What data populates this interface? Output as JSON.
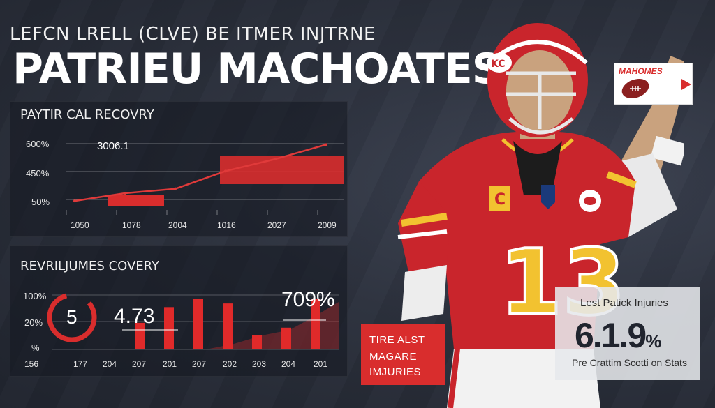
{
  "header": {
    "subtitle": "LEFCN LRELL (CLVE) BE ITMER INJTRNE",
    "title": "PATRIEU MACHOATES"
  },
  "panel_top": {
    "title": "PAYTIR CAL RECOVRY",
    "callout": "3006.1"
  },
  "panel_bottom": {
    "title": "REVRILJUMES COVERY",
    "circle_value": "5",
    "callout_value": "4.73",
    "callout_pct": "709%"
  },
  "red_box": {
    "line1": "TIRE ALST",
    "line2": "MAGARE",
    "line3": "IMJURIES"
  },
  "stat_box": {
    "label": "Lest Patick Injuries",
    "value": "6.1.9",
    "pct": "%",
    "note": "Pre Crattim Scotti on Stats"
  },
  "logo": {
    "text": "MAHOMES"
  },
  "player": {
    "jersey_number": "13",
    "patch": "C"
  },
  "colors": {
    "accent": "#d92d2d",
    "background": "#2a2f3c",
    "jersey": "#c9252c",
    "jersey_trim": "#f2c230"
  },
  "chart_data": [
    {
      "type": "line",
      "title": "PAYTIR CAL RECOVRY",
      "x": [
        "1050",
        "1078",
        "2004",
        "1016",
        "2027",
        "2009"
      ],
      "y_ticks": [
        "50%",
        "450%",
        "600%"
      ],
      "series": [
        {
          "values": [
            50,
            120,
            160,
            320,
            430,
            560
          ]
        }
      ],
      "annotations": [
        "3006.1"
      ],
      "grid": true
    },
    {
      "type": "bar",
      "title": "REVRILJUMES COVERY",
      "categories": [
        "156",
        "177",
        "204",
        "207",
        "201",
        "207",
        "202",
        "203",
        "204",
        "201"
      ],
      "y_ticks": [
        "%",
        "20%",
        "100%"
      ],
      "values": [
        0,
        0,
        0,
        22,
        35,
        42,
        38,
        12,
        18,
        42
      ],
      "annotations": [
        "5",
        "4.73",
        "709%"
      ],
      "grid": true
    }
  ]
}
